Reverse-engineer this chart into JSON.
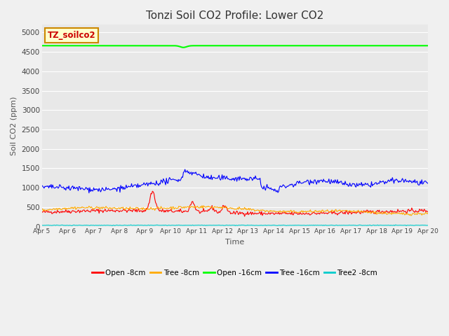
{
  "title": "Tonzi Soil CO2 Profile: Lower CO2",
  "xlabel": "Time",
  "ylabel": "Soil CO2 (ppm)",
  "ylim": [
    0,
    5200
  ],
  "yticks": [
    0,
    500,
    1000,
    1500,
    2000,
    2500,
    3000,
    3500,
    4000,
    4500,
    5000
  ],
  "fig_bg_color": "#f0f0f0",
  "plot_bg_color": "#e8e8e8",
  "watermark_text": "TZ_soilco2",
  "watermark_bg": "#ffffcc",
  "watermark_border": "#cc8800",
  "legend_labels": [
    "Open -8cm",
    "Tree -8cm",
    "Open -16cm",
    "Tree -16cm",
    "Tree2 -8cm"
  ],
  "series_colors": {
    "open8": "#ff0000",
    "tree8": "#ffaa00",
    "open16": "#00ff00",
    "tree16": "#0000ff",
    "tree2_8": "#00cccc"
  },
  "n_points": 500,
  "x_start": 5.0,
  "x_end": 20.0,
  "x_ticks": [
    5,
    6,
    7,
    8,
    9,
    10,
    11,
    12,
    13,
    14,
    15,
    16,
    17,
    18,
    19,
    20
  ],
  "x_tick_labels": [
    "Apr 5",
    "Apr 6",
    "Apr 7",
    "Apr 8",
    "Apr 9",
    "Apr 10",
    "Apr 11",
    "Apr 12",
    "Apr 13",
    "Apr 14",
    "Apr 15",
    "Apr 16",
    "Apr 17",
    "Apr 18",
    "Apr 19",
    "Apr 20"
  ],
  "open16_value": 4660,
  "tree2_8_value": 30,
  "seed": 42
}
